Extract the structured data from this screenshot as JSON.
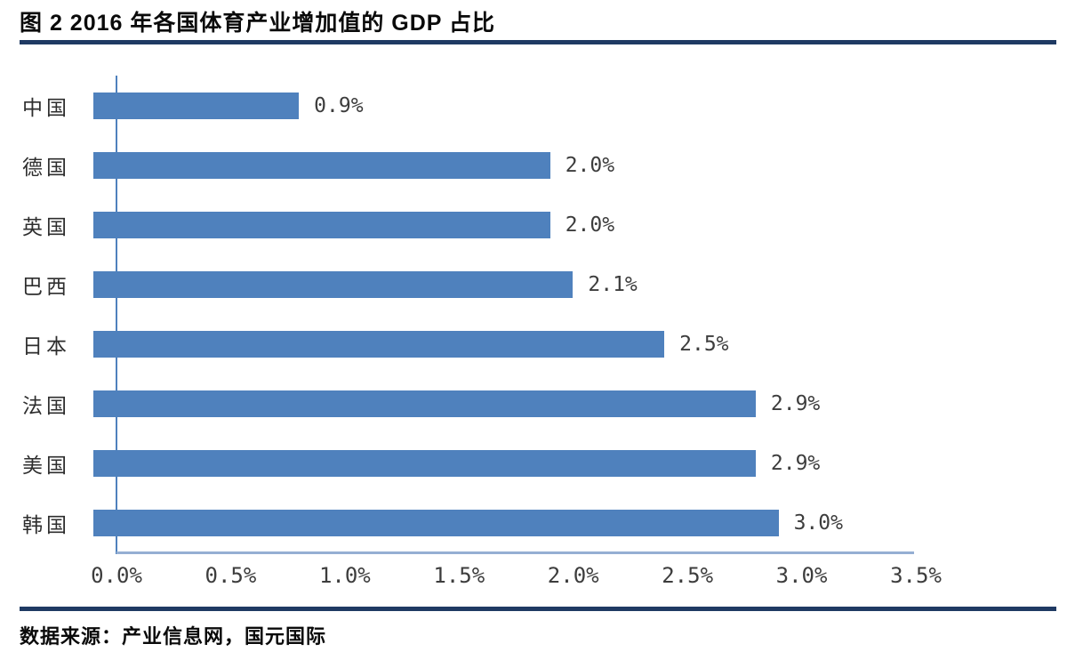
{
  "title": "图 2 2016 年各国体育产业增加值的 GDP 占比",
  "source": "数据来源：产业信息网，国元国际",
  "colors": {
    "bar": "#4F81BD",
    "y_axis_line": "#4F81BD",
    "x_baseline": "#95AFD3",
    "rule": "#1F3A63",
    "label_text": "#3d3d3d",
    "title_text": "#0a0a0a"
  },
  "chart_data": {
    "type": "bar",
    "orientation": "horizontal",
    "title": "图 2 2016 年各国体育产业增加值的 GDP 占比",
    "categories": [
      "中国",
      "德国",
      "英国",
      "巴西",
      "日本",
      "法国",
      "美国",
      "韩国"
    ],
    "values": [
      0.9,
      2.0,
      2.0,
      2.1,
      2.5,
      2.9,
      2.9,
      3.0
    ],
    "value_labels": [
      "0.9%",
      "2.0%",
      "2.0%",
      "2.1%",
      "2.5%",
      "2.9%",
      "2.9%",
      "3.0%"
    ],
    "xlabel": "",
    "ylabel": "",
    "xlim": [
      0,
      3.5
    ],
    "x_ticks": [
      "0.0%",
      "0.5%",
      "1.0%",
      "1.5%",
      "2.0%",
      "2.5%",
      "3.0%",
      "3.5%"
    ],
    "x_tick_values": [
      0.0,
      0.5,
      1.0,
      1.5,
      2.0,
      2.5,
      3.0,
      3.5
    ],
    "grid": false,
    "legend": false,
    "source": "数据来源：产业信息网，国元国际"
  }
}
